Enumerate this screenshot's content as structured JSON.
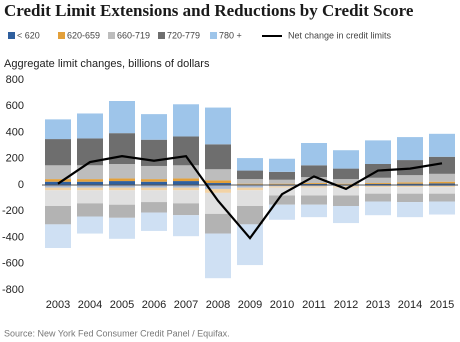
{
  "chart_data": {
    "type": "diverging_stacked_bar",
    "title": "Credit Limit Extensions and Reductions by Credit Score",
    "subtitle": "Aggregate limit changes, billions of dollars",
    "source": "Source: New York Fed Consumer Credit Panel / Equifax.",
    "categories": [
      "2003",
      "2004",
      "2005",
      "2006",
      "2007",
      "2008",
      "2009",
      "2010",
      "2011",
      "2012",
      "2013",
      "2014",
      "2015"
    ],
    "series": [
      {
        "name": "< 620",
        "color": "#2f5f9e",
        "negative_color": "#a9b9d4",
        "values": [
          25,
          25,
          30,
          25,
          30,
          15,
          5,
          5,
          8,
          5,
          8,
          10,
          12
        ],
        "reductions": [
          -20,
          -20,
          -20,
          -20,
          -20,
          -30,
          -20,
          -10,
          -10,
          -10,
          -8,
          -8,
          -8
        ]
      },
      {
        "name": "620-659",
        "color": "#e3a03a",
        "negative_color": "#f2d3a6",
        "values": [
          20,
          20,
          20,
          20,
          20,
          20,
          5,
          5,
          7,
          5,
          7,
          10,
          13
        ],
        "reductions": [
          -20,
          -20,
          -20,
          -20,
          -20,
          -30,
          -20,
          -10,
          -10,
          -10,
          -8,
          -8,
          -8
        ]
      },
      {
        "name": "660-719",
        "color": "#bdbdbd",
        "negative_color": "#e0e0e0",
        "values": [
          105,
          105,
          110,
          100,
          100,
          85,
          35,
          30,
          45,
          35,
          40,
          55,
          60
        ],
        "reductions": [
          -120,
          -100,
          -110,
          -90,
          -100,
          -160,
          -120,
          -60,
          -60,
          -60,
          -50,
          -50,
          -50
        ]
      },
      {
        "name": "720-779",
        "color": "#6e6e6e",
        "negative_color": "#b3b3b3",
        "values": [
          200,
          205,
          235,
          200,
          220,
          190,
          65,
          60,
          90,
          80,
          105,
          115,
          130
        ],
        "reductions": [
          -140,
          -100,
          -100,
          -80,
          -90,
          -150,
          -140,
          -70,
          -70,
          -80,
          -60,
          -64,
          -60
        ]
      },
      {
        "name": "780 +",
        "color": "#9ec5ea",
        "negative_color": "#cfe0f3",
        "values": [
          150,
          190,
          245,
          195,
          245,
          280,
          95,
          100,
          170,
          140,
          180,
          175,
          175
        ],
        "reductions": [
          -180,
          -130,
          -160,
          -140,
          -160,
          -340,
          -310,
          -115,
          -95,
          -130,
          -104,
          -115,
          -99
        ]
      }
    ],
    "line": {
      "name": "Net change in credit limits",
      "color": "#000000",
      "values": [
        10,
        175,
        220,
        185,
        220,
        -120,
        -405,
        -70,
        65,
        -30,
        110,
        125,
        165
      ]
    },
    "ylim": [
      -800,
      800
    ],
    "yticks": [
      -800,
      -600,
      -400,
      -200,
      0,
      200,
      400,
      600,
      800
    ]
  }
}
